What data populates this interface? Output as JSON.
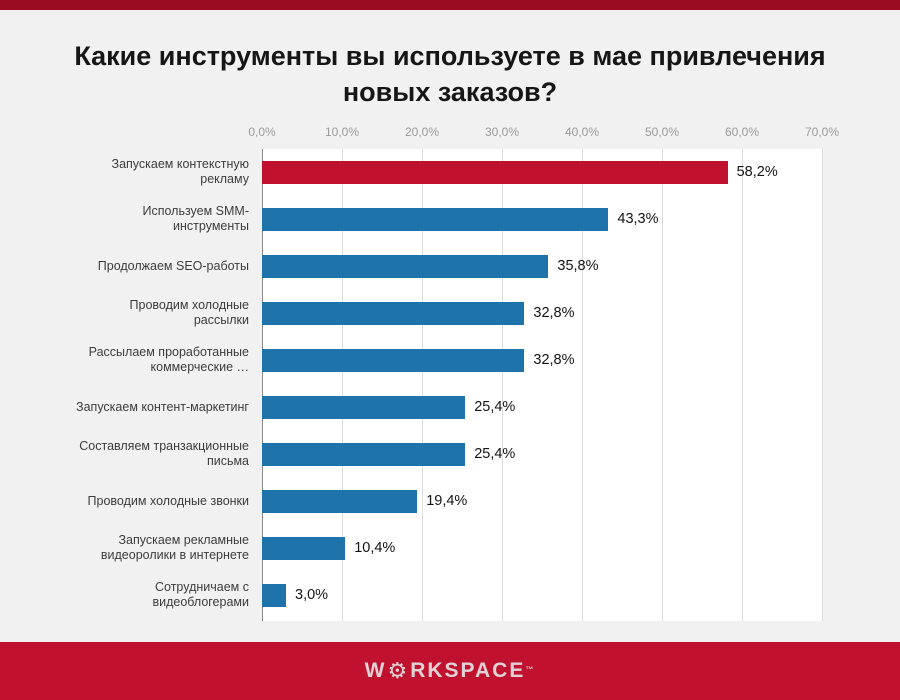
{
  "header": {
    "title": "Какие инструменты вы используете в мае привлечения новых заказов?"
  },
  "footer": {
    "logo_prefix": "W",
    "logo_suffix": "RKSPACE",
    "gear_icon": "⚙",
    "trademark": "™"
  },
  "colors": {
    "top_strip": "#9a0d20",
    "accent_red": "#c0122f",
    "bar_blue": "#1e74aa",
    "bar_highlight": "#c0122f"
  },
  "chart_data": {
    "type": "bar",
    "orientation": "horizontal",
    "title": "Какие инструменты вы используете в мае привлечения новых заказов?",
    "categories": [
      "Запускаем контекстную рекламу",
      "Используем SMM-инструменты",
      "Продолжаем SEO-работы",
      "Проводим холодные рассылки",
      "Рассылаем проработанные коммерческие …",
      "Запускаем контент-маркетинг",
      "Составляем транзакционные письма",
      "Проводим холодные звонки",
      "Запускаем рекламные видеоролики в интернете",
      "Сотрудничаем с видеоблогерами"
    ],
    "values": [
      58.2,
      43.3,
      35.8,
      32.8,
      32.8,
      25.4,
      25.4,
      19.4,
      10.4,
      3.0
    ],
    "value_labels": [
      "58,2%",
      "43,3%",
      "35,8%",
      "32,8%",
      "32,8%",
      "25,4%",
      "25,4%",
      "19,4%",
      "10,4%",
      "3,0%"
    ],
    "xlim": [
      0,
      70
    ],
    "x_ticks": [
      "0,0%",
      "10,0%",
      "20,0%",
      "30,0%",
      "40,0%",
      "50,0%",
      "60,0%",
      "70,0%"
    ],
    "grid": true,
    "legend": false,
    "highlight_index": 0
  }
}
